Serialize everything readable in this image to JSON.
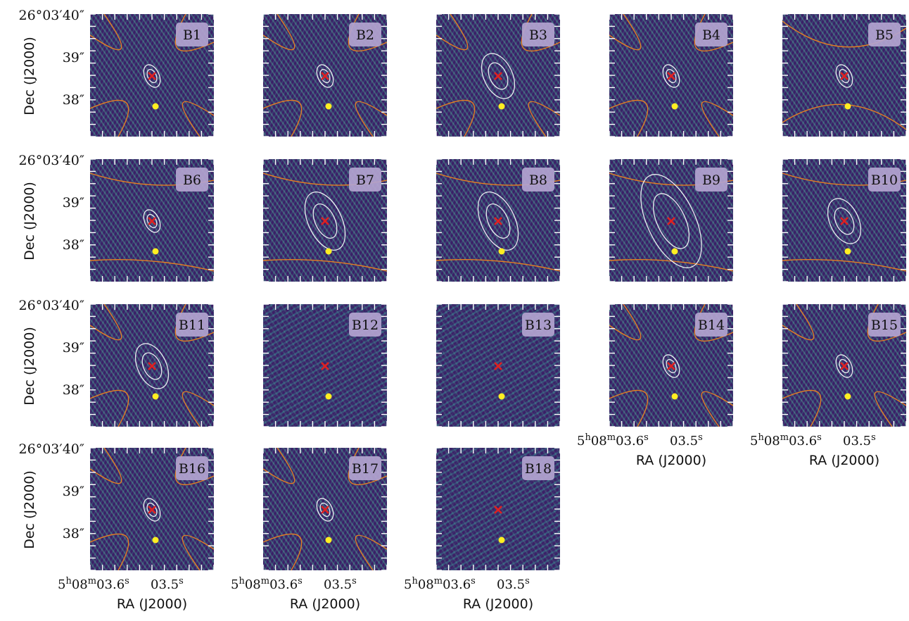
{
  "figure": {
    "title": "",
    "x_axis_label": "RA (J2000)",
    "y_axis_label": "Dec (J2000)",
    "x_tick_labels": [
      {
        "h": "5",
        "hu": "h",
        "m": "08",
        "mu": "m",
        "s": "03.6",
        "su": "s"
      },
      {
        "s": "03.5",
        "su": "s"
      }
    ],
    "y_tick_labels": [
      "26°03′40″",
      "39″",
      "38″"
    ]
  },
  "chart_data": {
    "type": "heatmap",
    "colormap": "viridis",
    "legend": "none",
    "grid": false,
    "xlabel": "RA (J2000)",
    "ylabel": "Dec (J2000)",
    "yticks": [
      "26°03′40″",
      "39″",
      "38″"
    ],
    "xticks": [
      "5h08m03.6s",
      "03.5s"
    ],
    "colors": {
      "background": "#3b1f67",
      "fringe_a": "#34b8a8",
      "fringe_b": "#5be0a0",
      "contour_orange": "#e67e22",
      "contour_white": "#ffffff",
      "marker_red": "#e02020",
      "marker_yellow": "#ffee22",
      "label_box": "#b3a4d0"
    },
    "panels": [
      {
        "label": "B1",
        "row": 0,
        "col": 0,
        "source_contours": true,
        "ellipse_size": "small",
        "hyperbola_axis": "diagonal"
      },
      {
        "label": "B2",
        "row": 0,
        "col": 1,
        "source_contours": true,
        "ellipse_size": "small",
        "hyperbola_axis": "diagonal"
      },
      {
        "label": "B3",
        "row": 0,
        "col": 2,
        "source_contours": true,
        "ellipse_size": "medium",
        "hyperbola_axis": "diagonal"
      },
      {
        "label": "B4",
        "row": 0,
        "col": 3,
        "source_contours": true,
        "ellipse_size": "small",
        "hyperbola_axis": "diagonal"
      },
      {
        "label": "B5",
        "row": 0,
        "col": 4,
        "source_contours": true,
        "ellipse_size": "small",
        "hyperbola_axis": "horizontal"
      },
      {
        "label": "B6",
        "row": 1,
        "col": 0,
        "source_contours": true,
        "ellipse_size": "small",
        "hyperbola_axis": "vertical"
      },
      {
        "label": "B7",
        "row": 1,
        "col": 1,
        "source_contours": true,
        "ellipse_size": "large",
        "hyperbola_axis": "vertical"
      },
      {
        "label": "B8",
        "row": 1,
        "col": 2,
        "source_contours": true,
        "ellipse_size": "large",
        "hyperbola_axis": "vertical"
      },
      {
        "label": "B9",
        "row": 1,
        "col": 3,
        "source_contours": true,
        "ellipse_size": "xlarge",
        "hyperbola_axis": "vertical"
      },
      {
        "label": "B10",
        "row": 1,
        "col": 4,
        "source_contours": true,
        "ellipse_size": "medium",
        "hyperbola_axis": "vertical"
      },
      {
        "label": "B11",
        "row": 2,
        "col": 0,
        "source_contours": true,
        "ellipse_size": "medium",
        "hyperbola_axis": "diagonal"
      },
      {
        "label": "B12",
        "row": 2,
        "col": 1,
        "source_contours": false,
        "ellipse_size": "none",
        "hyperbola_axis": "none"
      },
      {
        "label": "B13",
        "row": 2,
        "col": 2,
        "source_contours": false,
        "ellipse_size": "none",
        "hyperbola_axis": "none"
      },
      {
        "label": "B14",
        "row": 2,
        "col": 3,
        "source_contours": true,
        "ellipse_size": "small",
        "hyperbola_axis": "diagonal"
      },
      {
        "label": "B15",
        "row": 2,
        "col": 4,
        "source_contours": true,
        "ellipse_size": "small",
        "hyperbola_axis": "diagonal"
      },
      {
        "label": "B16",
        "row": 3,
        "col": 0,
        "source_contours": true,
        "ellipse_size": "small",
        "hyperbola_axis": "diagonal"
      },
      {
        "label": "B17",
        "row": 3,
        "col": 1,
        "source_contours": true,
        "ellipse_size": "small",
        "hyperbola_axis": "diagonal"
      },
      {
        "label": "B18",
        "row": 3,
        "col": 2,
        "source_contours": false,
        "ellipse_size": "none",
        "hyperbola_axis": "none"
      }
    ],
    "y_axis_panels": [
      "B1",
      "B6",
      "B11",
      "B16"
    ],
    "x_axis_panels": [
      "B14",
      "B15",
      "B16",
      "B17",
      "B18"
    ]
  }
}
